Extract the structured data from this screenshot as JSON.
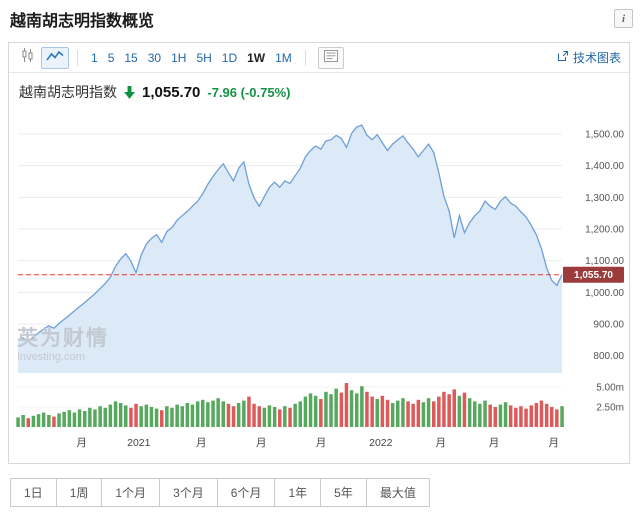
{
  "page": {
    "title": "越南胡志明指数概览",
    "info_icon": "i"
  },
  "toolbar": {
    "chart_types": [
      {
        "name": "candlestick",
        "active": false
      },
      {
        "name": "line",
        "active": true
      }
    ],
    "intervals": [
      "1",
      "5",
      "15",
      "30",
      "1H",
      "5H",
      "1D",
      "1W",
      "1M"
    ],
    "active_interval": "1W",
    "tech_chart_label": "技术图表"
  },
  "quote": {
    "name": "越南胡志明指数",
    "direction": "down",
    "price": "1,055.70",
    "change": "-7.96 (-0.75%)",
    "change_color": "#149244"
  },
  "watermark": {
    "cn": "英为财情",
    "en": "Investing.com"
  },
  "range_buttons": [
    "1日",
    "1周",
    "1个月",
    "3个月",
    "6个月",
    "1年",
    "5年",
    "最大值"
  ],
  "chart_data": {
    "type": "area",
    "title": "越南胡志明指数",
    "interval": "1W",
    "ylim": [
      755,
      1560
    ],
    "y_ticks": {
      "values": [
        1500,
        1400,
        1300,
        1200,
        1100,
        1000,
        900,
        800
      ],
      "labels": [
        "1,500.00",
        "1,400.00",
        "1,300.00",
        "1,200.00",
        "1,100.00",
        "1,000.00",
        "900.00",
        "800.00"
      ]
    },
    "volume_max": 6,
    "volume_ticks": {
      "values": [
        5,
        2.5
      ],
      "labels": [
        "5.00m",
        "2.50m"
      ]
    },
    "x_ticks": [
      {
        "label": "月",
        "pos": 0.117
      },
      {
        "label": "2021",
        "pos": 0.222
      },
      {
        "label": "月",
        "pos": 0.337
      },
      {
        "label": "月",
        "pos": 0.447
      },
      {
        "label": "月",
        "pos": 0.557
      },
      {
        "label": "2022",
        "pos": 0.667
      },
      {
        "label": "月",
        "pos": 0.777
      },
      {
        "label": "月",
        "pos": 0.875
      },
      {
        "label": "月",
        "pos": 0.985
      }
    ],
    "prices": [
      850,
      856,
      845,
      860,
      872,
      884,
      895,
      887,
      902,
      915,
      928,
      942,
      955,
      968,
      982,
      996,
      1012,
      1028,
      1048,
      1082,
      1105,
      1122,
      1098,
      1062,
      1118,
      1152,
      1170,
      1182,
      1158,
      1192,
      1205,
      1228,
      1242,
      1256,
      1272,
      1288,
      1312,
      1342,
      1366,
      1388,
      1406,
      1378,
      1352,
      1392,
      1412,
      1342,
      1298,
      1272,
      1302,
      1332,
      1348,
      1332,
      1352,
      1344,
      1368,
      1392,
      1428,
      1448,
      1462,
      1452,
      1478,
      1482,
      1496,
      1486,
      1458,
      1502,
      1522,
      1528,
      1496,
      1482,
      1498,
      1472,
      1448,
      1468,
      1482,
      1494,
      1472,
      1452,
      1428,
      1448,
      1468,
      1442,
      1378,
      1302,
      1258,
      1172,
      1242,
      1188,
      1220,
      1242,
      1258,
      1288,
      1272,
      1262,
      1288,
      1302,
      1282,
      1272,
      1254,
      1238,
      1212,
      1182,
      1138,
      1078,
      1038,
      1022,
      1055.7
    ],
    "volumes": [
      1.2,
      1.5,
      1.1,
      1.4,
      1.6,
      1.8,
      1.5,
      1.3,
      1.7,
      1.9,
      2.1,
      1.8,
      2.2,
      2.0,
      2.4,
      2.2,
      2.6,
      2.4,
      2.8,
      3.2,
      3.0,
      2.7,
      2.4,
      2.9,
      2.6,
      2.8,
      2.5,
      2.3,
      2.1,
      2.6,
      2.4,
      2.8,
      2.6,
      3.0,
      2.8,
      3.2,
      3.4,
      3.1,
      3.3,
      3.6,
      3.2,
      2.9,
      2.6,
      3.0,
      3.3,
      3.8,
      2.9,
      2.6,
      2.4,
      2.7,
      2.5,
      2.2,
      2.6,
      2.4,
      2.9,
      3.2,
      3.8,
      4.2,
      3.9,
      3.5,
      4.4,
      4.1,
      4.8,
      4.3,
      5.5,
      4.6,
      4.2,
      5.1,
      4.4,
      3.8,
      3.5,
      3.9,
      3.4,
      3.0,
      3.3,
      3.6,
      3.2,
      2.9,
      3.4,
      3.1,
      3.6,
      3.2,
      3.8,
      4.4,
      4.1,
      4.7,
      3.9,
      4.3,
      3.6,
      3.2,
      2.9,
      3.3,
      2.8,
      2.5,
      2.8,
      3.1,
      2.7,
      2.4,
      2.6,
      2.3,
      2.7,
      3.0,
      3.3,
      2.9,
      2.5,
      2.2,
      2.6
    ],
    "last_price": 1055.7,
    "last_price_label": "1,055.70",
    "colors": {
      "line": "#6f9fd8",
      "fill": "#dce9f7",
      "up": "#57a85f",
      "down": "#dd5a5a",
      "last_line": "#e23b3b",
      "last_box": "#9c3b3b",
      "grid": "#ececec",
      "axis_text": "#555"
    }
  }
}
